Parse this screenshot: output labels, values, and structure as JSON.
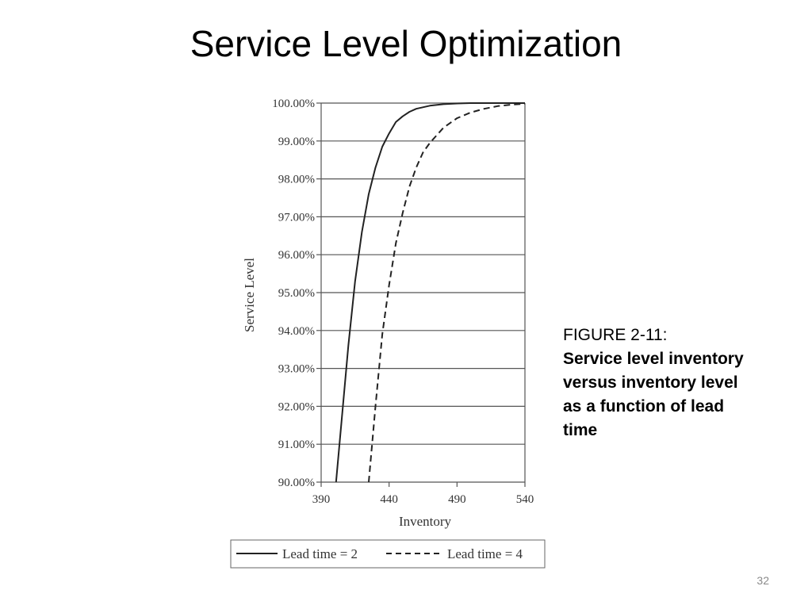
{
  "slide": {
    "title": "Service Level Optimization",
    "page_number": "32"
  },
  "caption": {
    "figure_label": "FIGURE 2-11:",
    "text": "Service level inventory versus inventory level as a function of lead time"
  },
  "chart_data": {
    "type": "line",
    "title": "",
    "xlabel": "Inventory",
    "ylabel": "Service Level",
    "xlim": [
      390,
      540
    ],
    "ylim": [
      90,
      100
    ],
    "x_ticks": [
      "390",
      "440",
      "490",
      "540"
    ],
    "y_ticks": [
      "90.00%",
      "91.00%",
      "92.00%",
      "93.00%",
      "94.00%",
      "95.00%",
      "96.00%",
      "97.00%",
      "98.00%",
      "99.00%",
      "100.00%"
    ],
    "grid": "horizontal",
    "legend_position": "bottom",
    "series": [
      {
        "name": "Lead time = 2",
        "line_style": "solid",
        "x": [
          401,
          405,
          410,
          415,
          420,
          425,
          430,
          435,
          440,
          445,
          450,
          455,
          460,
          470,
          480,
          490,
          500,
          520,
          540
        ],
        "y": [
          90.0,
          91.6,
          93.6,
          95.3,
          96.6,
          97.6,
          98.3,
          98.85,
          99.2,
          99.5,
          99.65,
          99.77,
          99.85,
          99.93,
          99.97,
          99.99,
          100.0,
          100.0,
          100.0
        ]
      },
      {
        "name": "Lead time = 4",
        "line_style": "dashed",
        "x": [
          425,
          430,
          435,
          440,
          445,
          450,
          455,
          460,
          465,
          470,
          480,
          490,
          500,
          510,
          520,
          530,
          540
        ],
        "y": [
          90.0,
          92.0,
          93.9,
          95.2,
          96.3,
          97.1,
          97.8,
          98.3,
          98.7,
          98.95,
          99.35,
          99.6,
          99.75,
          99.85,
          99.92,
          99.96,
          99.98
        ]
      }
    ]
  }
}
